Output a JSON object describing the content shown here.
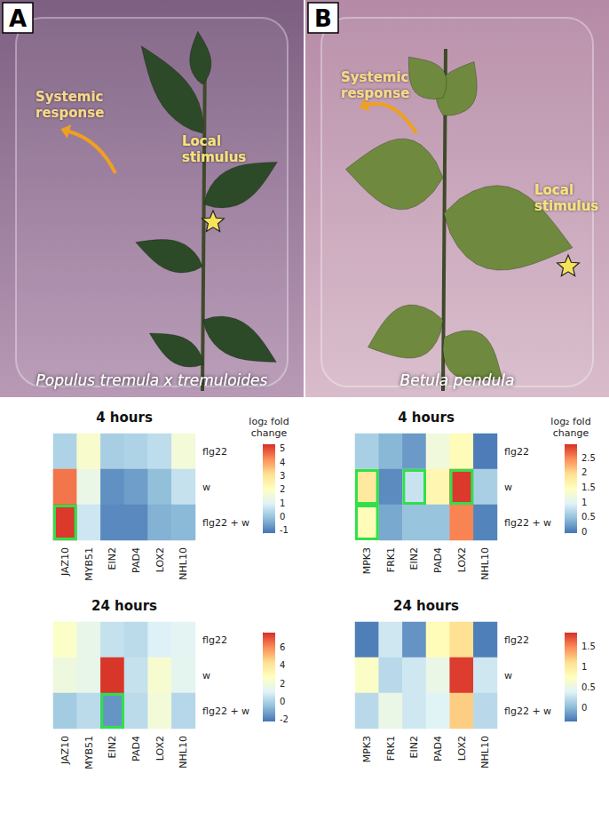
{
  "panels": [
    {
      "letter": "A",
      "species": "Populus tremula x tremuloides",
      "arrow_label": "Systemic response",
      "stimulus_label": "Local stimulus"
    },
    {
      "letter": "B",
      "species": "Betula pendula",
      "arrow_label": "Systemic response",
      "stimulus_label": "Local stimulus"
    }
  ],
  "chart_data": [
    {
      "type": "heatmap",
      "panel": "A",
      "title": "4 hours",
      "x": [
        "JAZ10",
        "MYB51",
        "EIN2",
        "PAD4",
        "LOX2",
        "NHL10"
      ],
      "y": [
        "flg22",
        "w",
        "flg22 + w"
      ],
      "values": [
        [
          0.3,
          1.8,
          0.2,
          0.3,
          0.5,
          1.6
        ],
        [
          4.5,
          1.3,
          -0.8,
          -0.6,
          -0.1,
          0.6
        ],
        [
          5.2,
          0.7,
          -0.9,
          -0.9,
          -0.3,
          -0.2
        ]
      ],
      "color_label": "log₂ fold change",
      "color_range": [
        -1.2,
        5.3
      ],
      "color_ticks": [
        -1,
        0,
        1,
        2,
        3,
        4,
        5
      ],
      "highlight": [
        {
          "x": "JAZ10",
          "y": "flg22 + w"
        }
      ]
    },
    {
      "type": "heatmap",
      "panel": "A",
      "title": "24 hours",
      "x": [
        "JAZ10",
        "MYB51",
        "EIN2",
        "PAD4",
        "LOX2",
        "NHL10"
      ],
      "y": [
        "flg22",
        "w",
        "flg22 + w"
      ],
      "values": [
        [
          2.5,
          1.5,
          0.5,
          0.3,
          1.0,
          1.2
        ],
        [
          1.8,
          1.5,
          7.5,
          0.5,
          2.2,
          1.3
        ],
        [
          -0.2,
          0.3,
          -1.5,
          0.3,
          2.0,
          0.2
        ]
      ],
      "color_range": [
        -2.2,
        7.6
      ],
      "color_ticks": [
        -2,
        0,
        2,
        4,
        6
      ],
      "highlight": [
        {
          "x": "EIN2",
          "y": "flg22 + w"
        }
      ]
    },
    {
      "type": "heatmap",
      "panel": "B",
      "title": "4 hours",
      "x": [
        "MPK3",
        "FRK1",
        "EIN2",
        "PAD4",
        "LOX2",
        "NHL10"
      ],
      "y": [
        "flg22",
        "w",
        "flg22 + w"
      ],
      "values": [
        [
          0.6,
          0.4,
          0.2,
          1.2,
          1.5,
          0.0
        ],
        [
          1.8,
          0.1,
          0.8,
          1.6,
          2.9,
          0.6
        ],
        [
          1.5,
          0.3,
          0.5,
          0.5,
          2.5,
          0.05
        ]
      ],
      "color_label": "log₂ fold change",
      "color_range": [
        -0.05,
        2.95
      ],
      "color_ticks": [
        0,
        0.5,
        1,
        1.5,
        2,
        2.5
      ],
      "highlight": [
        {
          "x": "MPK3",
          "y": "w"
        },
        {
          "x": "MPK3",
          "y": "flg22 + w"
        },
        {
          "x": "EIN2",
          "y": "w"
        },
        {
          "x": "LOX2",
          "y": "w"
        }
      ]
    },
    {
      "type": "heatmap",
      "panel": "B",
      "title": "24 hours",
      "x": [
        "MPK3",
        "FRK1",
        "EIN2",
        "PAD4",
        "LOX2",
        "NHL10"
      ],
      "y": [
        "flg22",
        "w",
        "flg22 + w"
      ],
      "values": [
        [
          -0.3,
          0.3,
          -0.2,
          0.8,
          1.1,
          -0.3
        ],
        [
          0.7,
          0.2,
          0.3,
          0.5,
          1.8,
          0.3
        ],
        [
          0.2,
          0.5,
          0.3,
          0.4,
          1.2,
          0.2
        ]
      ],
      "color_range": [
        -0.35,
        1.85
      ],
      "color_ticks": [
        0,
        0.5,
        1,
        1.5
      ],
      "highlight": []
    }
  ]
}
